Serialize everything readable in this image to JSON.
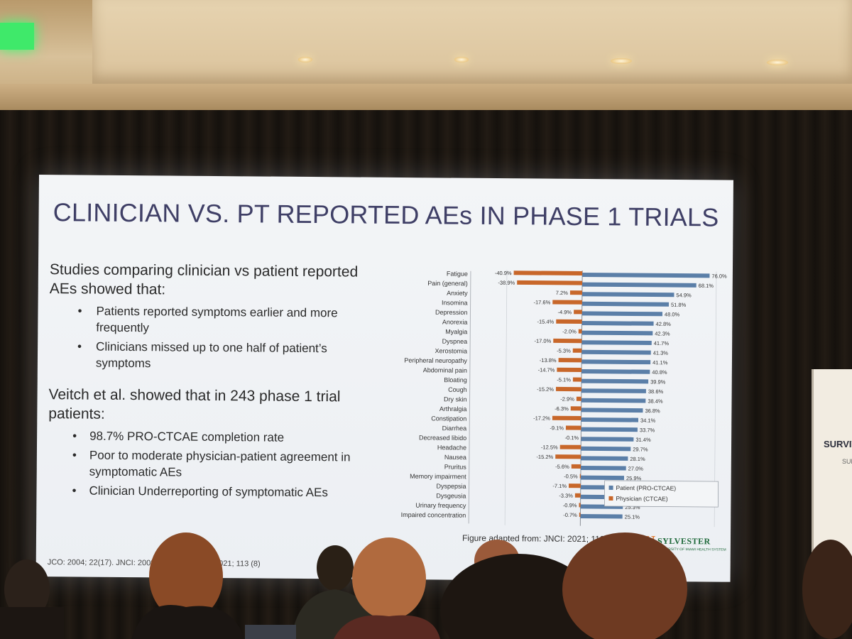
{
  "slide": {
    "title": "CLINICIAN VS. PT REPORTED AEs IN PHASE 1 TRIALS",
    "paragraph1": "Studies comparing clinician vs patient reported AEs showed that:",
    "bullets1": [
      "Patients reported symptoms earlier and more frequently",
      "Clinicians missed up to one half of patient’s symptoms"
    ],
    "paragraph2": "Veitch et al. showed that in 243 phase 1 trial patients:",
    "bullets2": [
      "98.7% PRO-CTCAE completion rate",
      "Poor to moderate physician-patient agreement in symptomatic AEs",
      "Clinician Underreporting of symptomatic AEs"
    ],
    "citation": "JCO: 2004; 22(17). JNCI: 2009; 101 (23), JNCI: 2021; 113 (8)",
    "caption": "Figure adapted from: JNCI: 2021; 113 (8)",
    "logo": {
      "letter": "U",
      "name": "SYLVESTER",
      "tagline": "UNIVERSITY OF MIAMI HEALTH SYSTEM"
    }
  },
  "side_banner": {
    "text1": "SURVIV",
    "text2": "SUP"
  },
  "chart_data": {
    "type": "bar",
    "orientation": "horizontal",
    "categories": [
      "Fatigue",
      "Pain (general)",
      "Anxiety",
      "Insomina",
      "Depression",
      "Anorexia",
      "Myalgia",
      "Dyspnea",
      "Xerostomia",
      "Peripheral neuropathy",
      "Abdominal pain",
      "Bloating",
      "Cough",
      "Dry skin",
      "Arthralgia",
      "Constipation",
      "Diarrhea",
      "Decreased libido",
      "Headache",
      "Nausea",
      "Pruritus",
      "Memory impairment",
      "Dyspepsia",
      "Dysgeusia",
      "Urinary frequency",
      "Impaired concentration"
    ],
    "series": [
      {
        "name": "Patient (PRO-CTCAE)",
        "color": "#5b7fa8",
        "values": [
          76.0,
          68.1,
          54.9,
          51.8,
          48.0,
          42.8,
          42.3,
          41.7,
          41.3,
          41.1,
          40.8,
          39.9,
          38.6,
          38.4,
          36.8,
          34.1,
          33.7,
          31.4,
          29.7,
          28.1,
          27.0,
          25.9,
          25.7,
          25.4,
          25.3,
          25.1
        ]
      },
      {
        "name": "Physician (CTCAE)",
        "color": "#c8672a",
        "values": [
          -40.9,
          -38.9,
          -7.2,
          -17.6,
          -4.9,
          -15.4,
          -2.0,
          -17.0,
          -5.3,
          -13.8,
          -14.7,
          -5.1,
          -15.2,
          -2.9,
          -6.3,
          -17.2,
          -9.1,
          -0.1,
          -12.5,
          -15.2,
          -5.6,
          -0.5,
          -7.1,
          -3.3,
          -0.9,
          -0.7
        ]
      }
    ],
    "value_labels": {
      "patient": [
        "76.0%",
        "68.1%",
        "54.9%",
        "51.8%",
        "48.0%",
        "42.8%",
        "42.3%",
        "41.7%",
        "41.3%",
        "41.1%",
        "40.8%",
        "39.9%",
        "38.6%",
        "38.4%",
        "36.8%",
        "34.1%",
        "33.7%",
        "31.4%",
        "29.7%",
        "28.1%",
        "27.0%",
        "25.9%",
        "25.7%",
        "25.4%",
        "25.3%",
        "25.1%"
      ],
      "physician": [
        "-40.9%",
        "-38.9%",
        "7.2%",
        "-17.6%",
        "-4.9%",
        "-15.4%",
        "-2.0%",
        "-17.0%",
        "-5.3%",
        "-13.8%",
        "-14.7%",
        "-5.1%",
        "-15.2%",
        "-2.9%",
        "-6.3%",
        "-17.2%",
        "-9.1%",
        "-0.1%",
        "-12.5%",
        "-15.2%",
        "-5.6%",
        "-0.5%",
        "-7.1%",
        "-3.3%",
        "-0.9%",
        "-0.7%"
      ]
    },
    "xlim": [
      -45,
      80
    ],
    "legend_position": "bottom-right",
    "grid": true
  },
  "colors": {
    "slide_title": "#3f3f66",
    "patient_bar": "#5b7fa8",
    "physician_bar": "#c8672a",
    "exit_sign": "#3fe96a"
  }
}
